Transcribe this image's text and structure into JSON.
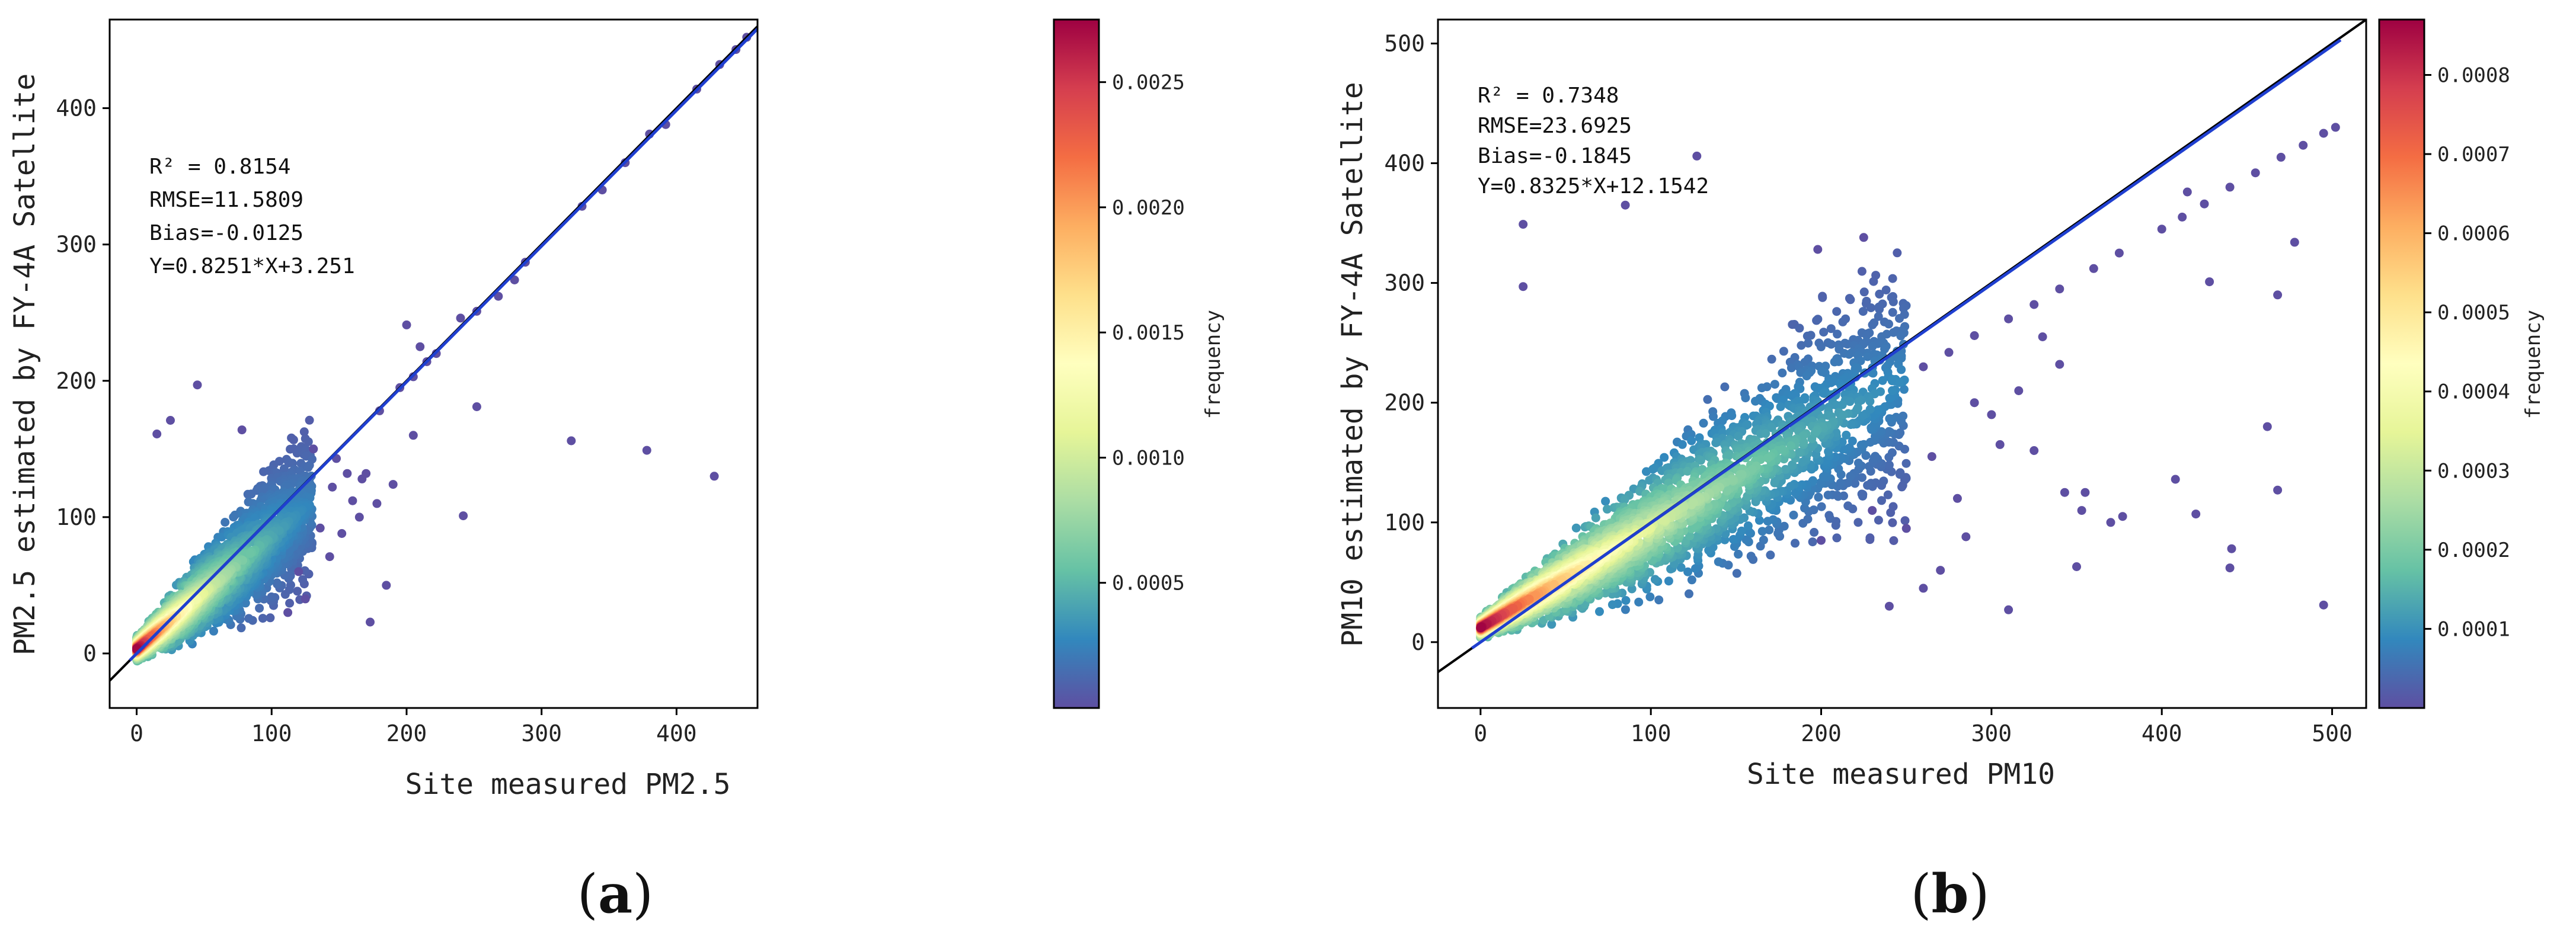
{
  "palette": {
    "scatter_base": "#5e4fa2",
    "colormap": [
      "#5e4fa2",
      "#3288bd",
      "#66c2a5",
      "#abdda4",
      "#e6f598",
      "#ffffbf",
      "#fee08b",
      "#fdae61",
      "#f46d43",
      "#d53e4f",
      "#9e0142"
    ],
    "fit_line": "#1f3fd0",
    "one_to_one": "#000000"
  },
  "chart_data": [
    {
      "type": "scatter",
      "panel": "a",
      "panel_label": {
        "open": "(",
        "letter": "a",
        "close": ")"
      },
      "xlabel": "Site measured PM2.5",
      "ylabel": "PM2.5 estimated by FY-4A Satellite",
      "xlim": [
        -20,
        460
      ],
      "ylim": [
        -40,
        465
      ],
      "xticks": [
        0,
        100,
        200,
        300,
        400
      ],
      "yticks": [
        0,
        100,
        200,
        300,
        400
      ],
      "stats": {
        "r2": "R² = 0.8154",
        "rmse": "RMSE=11.5809",
        "bias": "Bias=-0.0125",
        "equation": "Y=0.8251*X+3.251"
      },
      "fit": {
        "slope": 0.8251,
        "intercept": 3.251,
        "x_range": [
          0,
          460
        ]
      },
      "one_to_one": [
        [
          -20,
          -20
        ],
        [
          460,
          460
        ]
      ],
      "colorbar": {
        "label": "frequency",
        "range": [
          0,
          0.00275
        ],
        "ticks": [
          0.0005,
          0.001,
          0.0015,
          0.002,
          0.0025
        ],
        "tick_labels": [
          "0.0005",
          "0.0010",
          "0.0015",
          "0.0020",
          "0.0025"
        ]
      },
      "cloud": {
        "count": 3200,
        "x_max": 130,
        "seed": 11,
        "density_scale": 30
      },
      "outliers": [
        [
          45,
          197
        ],
        [
          322,
          156
        ],
        [
          378,
          149
        ],
        [
          428,
          130
        ],
        [
          252,
          181
        ],
        [
          242,
          101
        ],
        [
          200,
          241
        ],
        [
          173,
          23
        ],
        [
          185,
          50
        ],
        [
          170,
          132
        ],
        [
          190,
          124
        ],
        [
          148,
          143
        ],
        [
          156,
          132
        ],
        [
          178,
          110
        ],
        [
          165,
          100
        ],
        [
          160,
          112
        ],
        [
          136,
          92
        ],
        [
          145,
          122
        ],
        [
          131,
          150
        ],
        [
          143,
          71
        ],
        [
          25,
          171
        ],
        [
          15,
          161
        ],
        [
          78,
          164
        ],
        [
          205,
          160
        ],
        [
          210,
          225
        ],
        [
          120,
          60
        ],
        [
          112,
          30
        ],
        [
          125,
          40
        ],
        [
          152,
          88
        ],
        [
          167,
          128
        ]
      ],
      "on_line": [
        [
          180,
          178
        ],
        [
          195,
          195
        ],
        [
          205,
          203
        ],
        [
          215,
          214
        ],
        [
          222,
          220
        ],
        [
          240,
          246
        ],
        [
          252,
          251
        ],
        [
          268,
          262
        ],
        [
          280,
          274
        ],
        [
          288,
          287
        ],
        [
          330,
          328
        ],
        [
          345,
          340
        ],
        [
          362,
          360
        ],
        [
          380,
          381
        ],
        [
          392,
          388
        ],
        [
          415,
          414
        ],
        [
          432,
          432
        ],
        [
          444,
          443
        ],
        [
          452,
          452
        ]
      ]
    },
    {
      "type": "scatter",
      "panel": "b",
      "panel_label": {
        "open": "(",
        "letter": "b",
        "close": ")"
      },
      "xlabel": "Site measured PM10",
      "ylabel": "PM10 estimated by FY-4A Satellite",
      "xlim": [
        -25,
        520
      ],
      "ylim": [
        -55,
        520
      ],
      "xticks": [
        0,
        100,
        200,
        300,
        400,
        500
      ],
      "yticks": [
        0,
        100,
        200,
        300,
        400,
        500
      ],
      "stats": {
        "r2": "R² = 0.7348",
        "rmse": "RMSE=23.6925",
        "bias": "Bias=-0.1845",
        "equation": "Y=0.8325*X+12.1542"
      },
      "fit": {
        "slope": 0.8325,
        "intercept": 12.1542,
        "x_range": [
          0,
          505
        ]
      },
      "one_to_one": [
        [
          -25,
          -25
        ],
        [
          520,
          520
        ]
      ],
      "colorbar": {
        "label": "frequency",
        "range": [
          0,
          0.00087
        ],
        "ticks": [
          0.0001,
          0.0002,
          0.0003,
          0.0004,
          0.0005,
          0.0006,
          0.0007,
          0.0008
        ],
        "tick_labels": [
          "0.0001",
          "0.0002",
          "0.0003",
          "0.0004",
          "0.0005",
          "0.0006",
          "0.0007",
          "0.0008"
        ]
      },
      "cloud": {
        "count": 4200,
        "x_max": 250,
        "seed": 23,
        "density_scale": 60
      },
      "outliers": [
        [
          25,
          349
        ],
        [
          127,
          406
        ],
        [
          225,
          338
        ],
        [
          198,
          328
        ],
        [
          25,
          297
        ],
        [
          85,
          365
        ],
        [
          415,
          376
        ],
        [
          478,
          334
        ],
        [
          428,
          301
        ],
        [
          468,
          290
        ],
        [
          462,
          180
        ],
        [
          468,
          127
        ],
        [
          408,
          136
        ],
        [
          441,
          78
        ],
        [
          440,
          62
        ],
        [
          495,
          31
        ],
        [
          350,
          63
        ],
        [
          310,
          27
        ],
        [
          420,
          107
        ],
        [
          353,
          110
        ],
        [
          377,
          105
        ],
        [
          343,
          125
        ],
        [
          330,
          255
        ],
        [
          340,
          232
        ],
        [
          316,
          210
        ],
        [
          370,
          100
        ],
        [
          290,
          200
        ],
        [
          265,
          155
        ],
        [
          280,
          120
        ],
        [
          300,
          190
        ],
        [
          250,
          95
        ],
        [
          305,
          165
        ],
        [
          325,
          160
        ],
        [
          270,
          60
        ],
        [
          240,
          30
        ],
        [
          355,
          125
        ],
        [
          285,
          88
        ],
        [
          260,
          45
        ],
        [
          230,
          110
        ],
        [
          200,
          85
        ]
      ],
      "on_line": [
        [
          260,
          230
        ],
        [
          275,
          242
        ],
        [
          290,
          256
        ],
        [
          310,
          270
        ],
        [
          325,
          282
        ],
        [
          340,
          295
        ],
        [
          360,
          312
        ],
        [
          375,
          325
        ],
        [
          400,
          345
        ],
        [
          412,
          355
        ],
        [
          425,
          366
        ],
        [
          440,
          380
        ],
        [
          455,
          392
        ],
        [
          470,
          405
        ],
        [
          483,
          415
        ],
        [
          495,
          425
        ],
        [
          502,
          430
        ]
      ]
    }
  ]
}
